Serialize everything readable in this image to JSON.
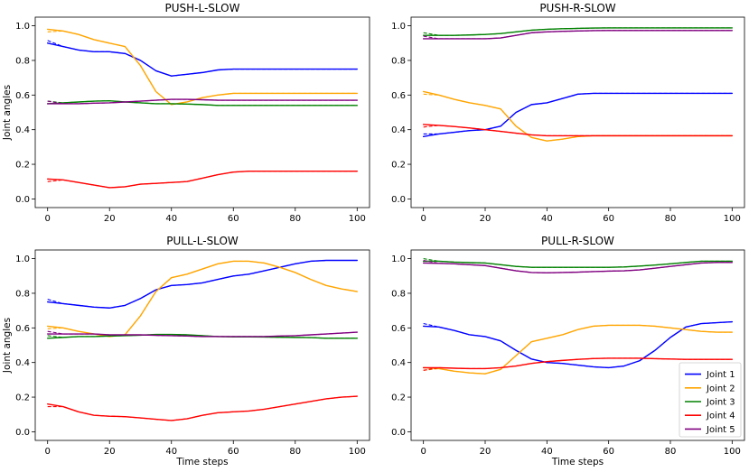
{
  "series_colors": {
    "Joint 1": "#0000ff",
    "Joint 2": "#ffa500",
    "Joint 3": "#008000",
    "Joint 4": "#ff0000",
    "Joint 5": "#800080"
  },
  "chart_data": [
    {
      "type": "line",
      "title": "PUSH-L-SLOW",
      "xlabel": "",
      "ylabel": "Joint angles",
      "xlim": [
        -4,
        104
      ],
      "ylim": [
        -0.05,
        1.05
      ],
      "xticks": [
        "0",
        "20",
        "40",
        "60",
        "80",
        "100"
      ],
      "yticks": [
        "0.0",
        "0.2",
        "0.4",
        "0.6",
        "0.8",
        "1.0"
      ],
      "x": [
        0,
        5,
        10,
        15,
        20,
        25,
        30,
        35,
        40,
        45,
        50,
        55,
        60,
        65,
        70,
        75,
        80,
        85,
        90,
        95,
        100
      ],
      "series": [
        {
          "name": "Joint 1",
          "values": [
            0.9,
            0.88,
            0.86,
            0.85,
            0.85,
            0.84,
            0.8,
            0.74,
            0.71,
            0.72,
            0.73,
            0.745,
            0.75,
            0.75,
            0.75,
            0.75,
            0.75,
            0.75,
            0.75,
            0.75,
            0.75
          ]
        },
        {
          "name": "Joint 2",
          "values": [
            0.98,
            0.97,
            0.95,
            0.92,
            0.9,
            0.88,
            0.77,
            0.62,
            0.545,
            0.56,
            0.585,
            0.6,
            0.61,
            0.61,
            0.61,
            0.61,
            0.61,
            0.61,
            0.61,
            0.61,
            0.61
          ]
        },
        {
          "name": "Joint 3",
          "values": [
            0.55,
            0.555,
            0.56,
            0.565,
            0.567,
            0.56,
            0.555,
            0.55,
            0.55,
            0.548,
            0.545,
            0.54,
            0.54,
            0.54,
            0.54,
            0.54,
            0.54,
            0.54,
            0.54,
            0.54,
            0.54
          ]
        },
        {
          "name": "Joint 4",
          "values": [
            0.115,
            0.11,
            0.095,
            0.08,
            0.065,
            0.07,
            0.085,
            0.09,
            0.095,
            0.1,
            0.12,
            0.14,
            0.155,
            0.16,
            0.16,
            0.16,
            0.16,
            0.16,
            0.16,
            0.16,
            0.16
          ]
        },
        {
          "name": "Joint 5",
          "values": [
            0.55,
            0.55,
            0.55,
            0.553,
            0.555,
            0.56,
            0.565,
            0.57,
            0.575,
            0.575,
            0.573,
            0.57,
            0.57,
            0.57,
            0.57,
            0.57,
            0.57,
            0.57,
            0.57,
            0.57,
            0.57
          ]
        }
      ]
    },
    {
      "type": "line",
      "title": "PUSH-R-SLOW",
      "xlabel": "",
      "ylabel": "",
      "xlim": [
        -4,
        104
      ],
      "ylim": [
        -0.05,
        1.05
      ],
      "xticks": [
        "0",
        "20",
        "40",
        "60",
        "80",
        "100"
      ],
      "yticks": [
        "0.0",
        "0.2",
        "0.4",
        "0.6",
        "0.8",
        "1.0"
      ],
      "x": [
        0,
        5,
        10,
        15,
        20,
        25,
        30,
        35,
        40,
        45,
        50,
        55,
        60,
        65,
        70,
        75,
        80,
        85,
        90,
        95,
        100
      ],
      "series": [
        {
          "name": "Joint 1",
          "values": [
            0.36,
            0.375,
            0.385,
            0.395,
            0.4,
            0.42,
            0.5,
            0.545,
            0.555,
            0.58,
            0.605,
            0.61,
            0.61,
            0.61,
            0.61,
            0.61,
            0.61,
            0.61,
            0.61,
            0.61,
            0.61
          ]
        },
        {
          "name": "Joint 2",
          "values": [
            0.62,
            0.6,
            0.575,
            0.555,
            0.54,
            0.52,
            0.42,
            0.355,
            0.335,
            0.345,
            0.36,
            0.365,
            0.365,
            0.365,
            0.365,
            0.365,
            0.365,
            0.365,
            0.365,
            0.365,
            0.365
          ]
        },
        {
          "name": "Joint 3",
          "values": [
            0.945,
            0.945,
            0.945,
            0.947,
            0.95,
            0.955,
            0.965,
            0.975,
            0.98,
            0.983,
            0.985,
            0.987,
            0.988,
            0.988,
            0.988,
            0.988,
            0.988,
            0.988,
            0.988,
            0.988,
            0.988
          ]
        },
        {
          "name": "Joint 4",
          "values": [
            0.43,
            0.425,
            0.418,
            0.41,
            0.4,
            0.39,
            0.38,
            0.37,
            0.365,
            0.365,
            0.365,
            0.365,
            0.365,
            0.365,
            0.365,
            0.365,
            0.365,
            0.365,
            0.365,
            0.365,
            0.365
          ]
        },
        {
          "name": "Joint 5",
          "values": [
            0.925,
            0.925,
            0.925,
            0.925,
            0.925,
            0.93,
            0.945,
            0.96,
            0.965,
            0.968,
            0.97,
            0.972,
            0.973,
            0.973,
            0.973,
            0.973,
            0.973,
            0.973,
            0.973,
            0.973,
            0.973
          ]
        }
      ]
    },
    {
      "type": "line",
      "title": "PULL-L-SLOW",
      "xlabel": "Time steps",
      "ylabel": "Joint angles",
      "xlim": [
        -4,
        104
      ],
      "ylim": [
        -0.05,
        1.05
      ],
      "xticks": [
        "0",
        "20",
        "40",
        "60",
        "80",
        "100"
      ],
      "yticks": [
        "0.0",
        "0.2",
        "0.4",
        "0.6",
        "0.8",
        "1.0"
      ],
      "x": [
        0,
        5,
        10,
        15,
        20,
        25,
        30,
        35,
        40,
        45,
        50,
        55,
        60,
        65,
        70,
        75,
        80,
        85,
        90,
        95,
        100
      ],
      "series": [
        {
          "name": "Joint 1",
          "values": [
            0.75,
            0.74,
            0.73,
            0.72,
            0.715,
            0.73,
            0.77,
            0.82,
            0.845,
            0.85,
            0.86,
            0.88,
            0.9,
            0.91,
            0.93,
            0.95,
            0.97,
            0.985,
            0.99,
            0.99,
            0.99
          ]
        },
        {
          "name": "Joint 2",
          "values": [
            0.61,
            0.6,
            0.58,
            0.565,
            0.55,
            0.56,
            0.67,
            0.81,
            0.89,
            0.91,
            0.94,
            0.97,
            0.985,
            0.985,
            0.975,
            0.95,
            0.92,
            0.88,
            0.845,
            0.825,
            0.81
          ]
        },
        {
          "name": "Joint 3",
          "values": [
            0.54,
            0.545,
            0.55,
            0.55,
            0.553,
            0.555,
            0.558,
            0.562,
            0.562,
            0.56,
            0.555,
            0.55,
            0.548,
            0.548,
            0.547,
            0.546,
            0.545,
            0.544,
            0.54,
            0.54,
            0.54
          ]
        },
        {
          "name": "Joint 4",
          "values": [
            0.16,
            0.145,
            0.115,
            0.095,
            0.09,
            0.087,
            0.08,
            0.072,
            0.065,
            0.075,
            0.095,
            0.11,
            0.115,
            0.12,
            0.13,
            0.145,
            0.16,
            0.175,
            0.19,
            0.2,
            0.205
          ]
        },
        {
          "name": "Joint 5",
          "values": [
            0.565,
            0.565,
            0.565,
            0.565,
            0.56,
            0.56,
            0.56,
            0.557,
            0.555,
            0.553,
            0.55,
            0.55,
            0.55,
            0.55,
            0.55,
            0.553,
            0.555,
            0.56,
            0.565,
            0.57,
            0.575
          ]
        }
      ]
    },
    {
      "type": "line",
      "title": "PULL-R-SLOW",
      "xlabel": "Time steps",
      "ylabel": "",
      "xlim": [
        -4,
        104
      ],
      "ylim": [
        -0.05,
        1.05
      ],
      "xticks": [
        "0",
        "20",
        "40",
        "60",
        "80",
        "100"
      ],
      "yticks": [
        "0.0",
        "0.2",
        "0.4",
        "0.6",
        "0.8",
        "1.0"
      ],
      "legend_position": "lower-right",
      "x": [
        0,
        5,
        10,
        15,
        20,
        25,
        30,
        35,
        40,
        45,
        50,
        55,
        60,
        65,
        70,
        75,
        80,
        85,
        90,
        95,
        100
      ],
      "series": [
        {
          "name": "Joint 1",
          "values": [
            0.61,
            0.605,
            0.585,
            0.56,
            0.55,
            0.525,
            0.47,
            0.42,
            0.4,
            0.395,
            0.385,
            0.375,
            0.37,
            0.38,
            0.41,
            0.47,
            0.545,
            0.605,
            0.625,
            0.63,
            0.635
          ]
        },
        {
          "name": "Joint 2",
          "values": [
            0.37,
            0.365,
            0.35,
            0.34,
            0.335,
            0.36,
            0.44,
            0.52,
            0.54,
            0.56,
            0.59,
            0.61,
            0.615,
            0.615,
            0.615,
            0.61,
            0.6,
            0.59,
            0.58,
            0.575,
            0.575
          ]
        },
        {
          "name": "Joint 3",
          "values": [
            0.985,
            0.985,
            0.98,
            0.977,
            0.975,
            0.965,
            0.955,
            0.95,
            0.95,
            0.95,
            0.95,
            0.95,
            0.95,
            0.952,
            0.957,
            0.963,
            0.97,
            0.978,
            0.985,
            0.985,
            0.985
          ]
        },
        {
          "name": "Joint 4",
          "values": [
            0.37,
            0.37,
            0.367,
            0.365,
            0.365,
            0.37,
            0.38,
            0.395,
            0.405,
            0.412,
            0.418,
            0.423,
            0.425,
            0.425,
            0.425,
            0.422,
            0.42,
            0.418,
            0.418,
            0.418,
            0.418
          ]
        },
        {
          "name": "Joint 5",
          "values": [
            0.975,
            0.973,
            0.97,
            0.965,
            0.96,
            0.945,
            0.93,
            0.92,
            0.918,
            0.92,
            0.922,
            0.925,
            0.928,
            0.93,
            0.935,
            0.945,
            0.955,
            0.965,
            0.975,
            0.978,
            0.978
          ]
        }
      ]
    }
  ]
}
